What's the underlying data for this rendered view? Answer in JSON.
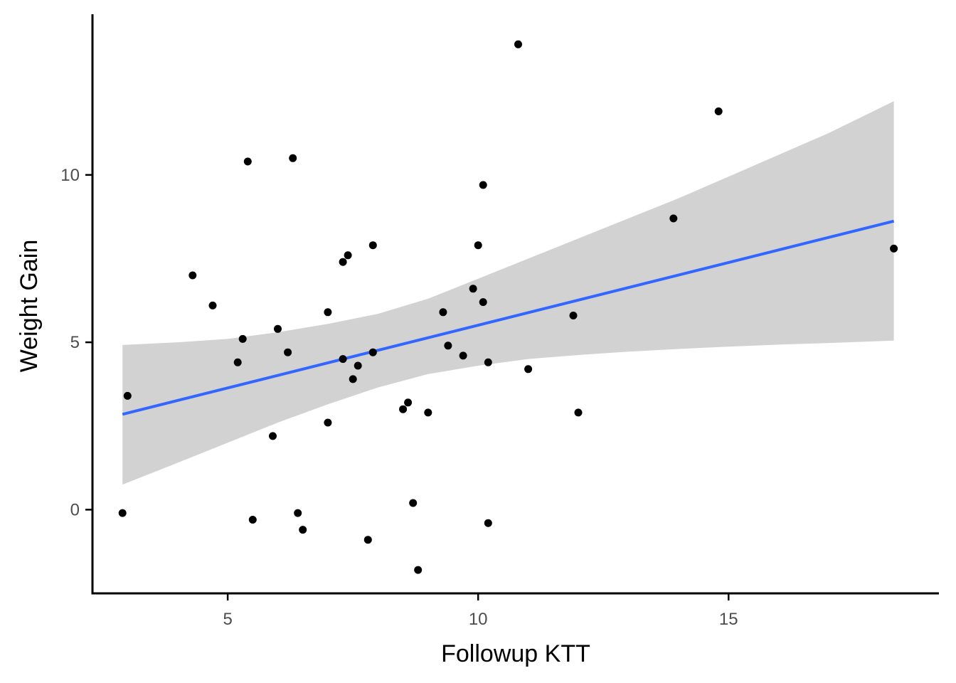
{
  "chart_data": {
    "type": "scatter",
    "title": "",
    "xlabel": "Followup KTT",
    "ylabel": "Weight Gain",
    "xlim": [
      2.3,
      19.2
    ],
    "ylim": [
      -2.5,
      14.8
    ],
    "x_ticks": [
      5,
      10,
      15
    ],
    "y_ticks": [
      0,
      5,
      10
    ],
    "x_tick_labels": [
      "5",
      "10",
      "15"
    ],
    "y_tick_labels": [
      "0",
      "5",
      "10"
    ],
    "grid": false,
    "legend": "none",
    "points": [
      {
        "x": 2.9,
        "y": -0.1
      },
      {
        "x": 3.0,
        "y": 3.4
      },
      {
        "x": 4.3,
        "y": 7.0
      },
      {
        "x": 4.7,
        "y": 6.1
      },
      {
        "x": 5.2,
        "y": 4.4
      },
      {
        "x": 5.3,
        "y": 5.1
      },
      {
        "x": 5.4,
        "y": 10.4
      },
      {
        "x": 5.5,
        "y": -0.3
      },
      {
        "x": 5.9,
        "y": 2.2
      },
      {
        "x": 6.0,
        "y": 5.4
      },
      {
        "x": 6.2,
        "y": 4.7
      },
      {
        "x": 6.3,
        "y": 10.5
      },
      {
        "x": 6.4,
        "y": -0.1
      },
      {
        "x": 6.5,
        "y": -0.6
      },
      {
        "x": 7.0,
        "y": 5.9
      },
      {
        "x": 7.0,
        "y": 2.6
      },
      {
        "x": 7.3,
        "y": 7.4
      },
      {
        "x": 7.3,
        "y": 4.5
      },
      {
        "x": 7.4,
        "y": 7.6
      },
      {
        "x": 7.5,
        "y": 3.9
      },
      {
        "x": 7.6,
        "y": 4.3
      },
      {
        "x": 7.8,
        "y": -0.9
      },
      {
        "x": 7.9,
        "y": 7.9
      },
      {
        "x": 7.9,
        "y": 4.7
      },
      {
        "x": 8.5,
        "y": 3.0
      },
      {
        "x": 8.6,
        "y": 3.2
      },
      {
        "x": 8.7,
        "y": 0.2
      },
      {
        "x": 8.8,
        "y": -1.8
      },
      {
        "x": 9.0,
        "y": 2.9
      },
      {
        "x": 9.3,
        "y": 5.9
      },
      {
        "x": 9.4,
        "y": 4.9
      },
      {
        "x": 9.7,
        "y": 4.6
      },
      {
        "x": 9.9,
        "y": 6.6
      },
      {
        "x": 10.0,
        "y": 7.9
      },
      {
        "x": 10.1,
        "y": 9.7
      },
      {
        "x": 10.1,
        "y": 6.2
      },
      {
        "x": 10.2,
        "y": 4.4
      },
      {
        "x": 10.2,
        "y": -0.4
      },
      {
        "x": 10.8,
        "y": 13.9
      },
      {
        "x": 11.0,
        "y": 4.2
      },
      {
        "x": 11.9,
        "y": 5.8
      },
      {
        "x": 12.0,
        "y": 2.9
      },
      {
        "x": 13.9,
        "y": 8.7
      },
      {
        "x": 14.8,
        "y": 11.9
      },
      {
        "x": 18.3,
        "y": 7.8
      }
    ],
    "fit_line": {
      "x": [
        2.9,
        18.3
      ],
      "y": [
        2.85,
        8.62
      ]
    },
    "confidence_band": {
      "x": [
        2.9,
        4.0,
        5.0,
        6.0,
        7.0,
        8.0,
        9.0,
        10.0,
        11.0,
        12.0,
        13.0,
        14.0,
        15.0,
        16.0,
        17.0,
        18.3
      ],
      "upper": [
        4.92,
        5.0,
        5.1,
        5.3,
        5.55,
        5.85,
        6.3,
        6.9,
        7.5,
        8.1,
        8.7,
        9.3,
        9.95,
        10.6,
        11.25,
        12.2
      ],
      "lower": [
        0.75,
        1.4,
        2.0,
        2.6,
        3.15,
        3.65,
        4.05,
        4.3,
        4.5,
        4.62,
        4.72,
        4.8,
        4.87,
        4.93,
        4.98,
        5.05
      ]
    },
    "colors": {
      "points": "#000000",
      "fit_line": "#3366ff",
      "band": "#d0d0d0",
      "axis": "#000000",
      "tick_label": "#4d4d4d"
    }
  }
}
